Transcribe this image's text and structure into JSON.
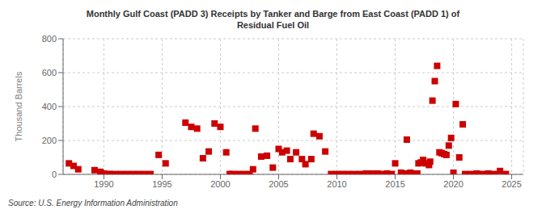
{
  "chart_data": {
    "type": "scatter",
    "title": "Monthly Gulf Coast (PADD 3) Receipts by Tanker and Barge from East Coast (PADD 1) of\nResidual Fuel Oil",
    "ylabel": "Thousand Barrels",
    "annotations": [
      "Source: U.S. Energy Information Administration"
    ],
    "color": "#cc0000",
    "marker": "square",
    "grid": true,
    "xlim": [
      1986.5,
      2026
    ],
    "xticks": [
      1990,
      1995,
      2000,
      2005,
      2010,
      2015,
      2020,
      2025
    ],
    "ylim": [
      0,
      800
    ],
    "yticks": [
      0,
      200,
      400,
      600,
      800
    ],
    "x": [
      1987.0,
      1987.4,
      1987.8,
      1989.2,
      1989.7,
      1990.0,
      1990.5,
      1991.0,
      1991.5,
      1992.0,
      1992.5,
      1993.0,
      1993.5,
      1994.0,
      1994.7,
      1995.3,
      1997.0,
      1997.5,
      1998.0,
      1998.5,
      1999.0,
      1999.5,
      2000.0,
      2000.5,
      2000.8,
      2001.0,
      2001.5,
      2002.0,
      2002.5,
      2002.8,
      2003.0,
      2003.5,
      2004.0,
      2004.5,
      2005.0,
      2005.3,
      2005.7,
      2006.0,
      2006.5,
      2007.0,
      2007.3,
      2007.8,
      2008.0,
      2008.5,
      2009.0,
      2009.5,
      2010.0,
      2010.5,
      2011.0,
      2011.5,
      2012.0,
      2012.5,
      2013.0,
      2013.5,
      2014.0,
      2014.3,
      2014.7,
      2015.0,
      2015.5,
      2015.8,
      2016.0,
      2016.3,
      2016.6,
      2016.9,
      2017.0,
      2017.2,
      2017.4,
      2017.6,
      2017.9,
      2018.0,
      2018.2,
      2018.4,
      2018.6,
      2018.8,
      2019.0,
      2019.2,
      2019.4,
      2019.6,
      2019.8,
      2020.0,
      2020.2,
      2020.5,
      2020.8,
      2021.0,
      2021.5,
      2022.0,
      2022.5,
      2023.0,
      2023.5,
      2024.0,
      2024.5
    ],
    "values": [
      65,
      50,
      30,
      25,
      15,
      5,
      3,
      2,
      2,
      2,
      2,
      2,
      2,
      2,
      115,
      65,
      305,
      280,
      270,
      95,
      135,
      300,
      280,
      130,
      2,
      2,
      2,
      2,
      2,
      30,
      270,
      105,
      110,
      40,
      150,
      130,
      140,
      90,
      130,
      90,
      60,
      90,
      240,
      225,
      135,
      2,
      2,
      2,
      2,
      2,
      2,
      5,
      5,
      5,
      2,
      5,
      2,
      65,
      10,
      5,
      205,
      10,
      5,
      5,
      65,
      70,
      85,
      65,
      55,
      75,
      435,
      550,
      640,
      130,
      125,
      120,
      115,
      170,
      215,
      10,
      415,
      100,
      295,
      2,
      2,
      5,
      2,
      5,
      2,
      20,
      2
    ]
  }
}
